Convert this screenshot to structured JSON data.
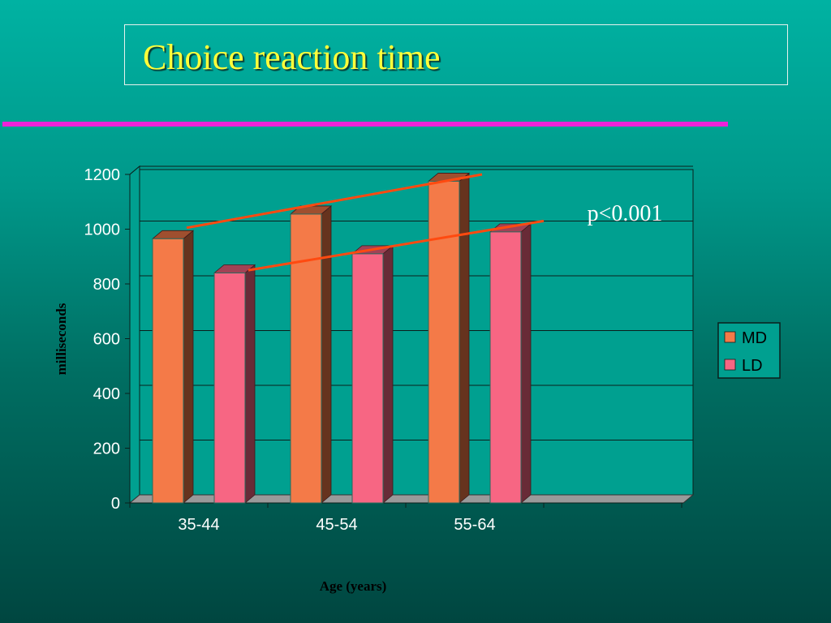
{
  "slide": {
    "title": "Choice reaction time"
  },
  "chart_data": {
    "type": "bar",
    "categories": [
      "35-44",
      "45-54",
      "55-64"
    ],
    "series": [
      {
        "name": "MD",
        "values": [
          965,
          1055,
          1175
        ],
        "color": "#f47a48"
      },
      {
        "name": "LD",
        "values": [
          840,
          910,
          990
        ],
        "color": "#f76683"
      }
    ],
    "ylabel": "milliseconds",
    "xlabel": "Age (years)",
    "ylim": [
      0,
      1200
    ],
    "yticks": [
      0,
      200,
      400,
      600,
      800,
      1000,
      1200
    ],
    "grid": true,
    "legend_position": "right",
    "annotations": [
      {
        "text": "p<0.001"
      }
    ],
    "trend_lines": [
      {
        "series": "MD",
        "from_value": 1005,
        "to_value": 1200,
        "color": "#ff4a10"
      },
      {
        "series": "LD",
        "from_value": 850,
        "to_value": 1030,
        "color": "#ff4a10"
      }
    ],
    "wall_color": "#00a090",
    "floor_color": "#9a9a9a"
  }
}
